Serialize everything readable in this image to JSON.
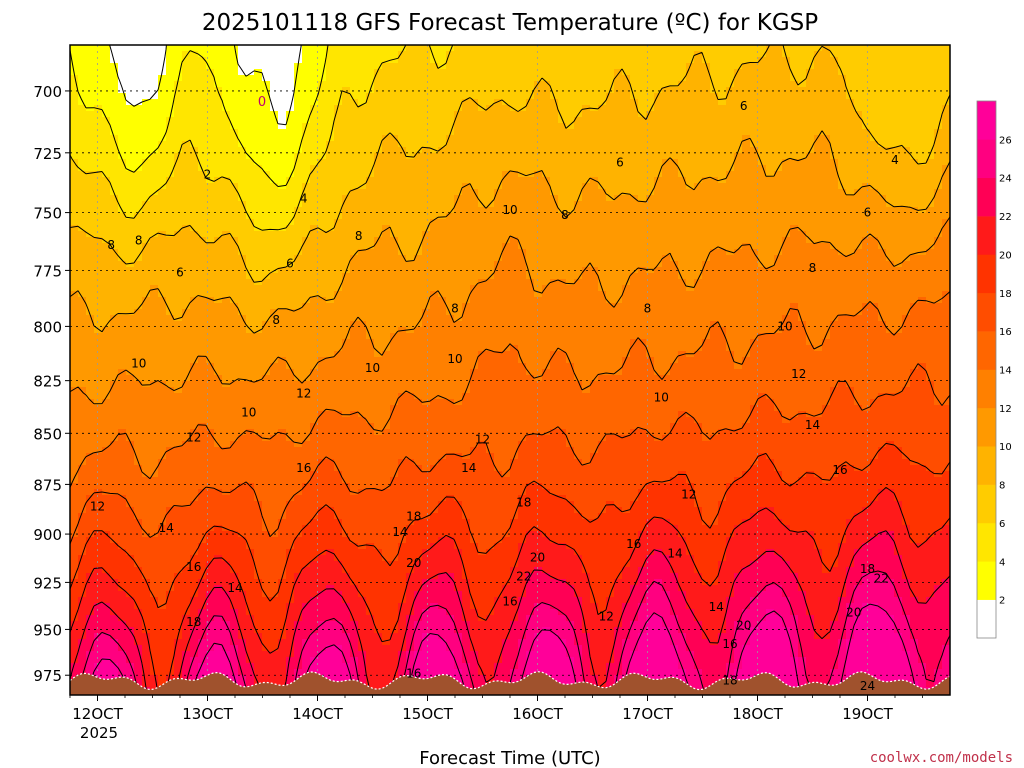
{
  "chart_data": {
    "type": "heatmap",
    "title": "2025101118 GFS Forecast Temperature (ºC) for KGSP",
    "xlabel": "Forecast Time (UTC)",
    "ylabel": "",
    "x_ticks": [
      "12OCT",
      "13OCT",
      "14OCT",
      "15OCT",
      "16OCT",
      "17OCT",
      "18OCT",
      "19OCT"
    ],
    "x_year": "2025",
    "y_ticks": [
      700,
      725,
      750,
      775,
      800,
      825,
      850,
      875,
      900,
      925,
      950,
      975
    ],
    "xlim": [
      "2025-10-11T18:00Z",
      "2025-10-19T18:00Z"
    ],
    "ylim": [
      986,
      682
    ],
    "y_axis": "pressure (hPa), decreasing upward",
    "colorbar": {
      "levels": [
        2,
        4,
        6,
        8,
        10,
        12,
        14,
        16,
        18,
        20,
        22,
        24,
        26
      ],
      "colors": [
        "#ffffff",
        "#ffff00",
        "#ffe600",
        "#ffcc00",
        "#ffb300",
        "#ff9900",
        "#ff8000",
        "#ff6600",
        "#ff4d00",
        "#ff3300",
        "#ff1a1a",
        "#ff0055",
        "#ff0080",
        "#ff0099"
      ]
    },
    "contour_interval": 2,
    "contour_labels": [
      {
        "value": "2",
        "time": "2025-10-13T00:00Z",
        "p": 734
      },
      {
        "value": "4",
        "time": "2025-10-13T21:00Z",
        "p": 744
      },
      {
        "value": "4",
        "time": "2025-10-19T06:00Z",
        "p": 728
      },
      {
        "value": "6",
        "time": "2025-10-12T18:00Z",
        "p": 776
      },
      {
        "value": "6",
        "time": "2025-10-13T18:00Z",
        "p": 772
      },
      {
        "value": "6",
        "time": "2025-10-16T18:00Z",
        "p": 729
      },
      {
        "value": "6",
        "time": "2025-10-17T21:00Z",
        "p": 706
      },
      {
        "value": "6",
        "time": "2025-10-19T00:00Z",
        "p": 750
      },
      {
        "value": "8",
        "time": "2025-10-12T03:00Z",
        "p": 764
      },
      {
        "value": "8",
        "time": "2025-10-12T09:00Z",
        "p": 762
      },
      {
        "value": "8",
        "time": "2025-10-13T15:00Z",
        "p": 797
      },
      {
        "value": "8",
        "time": "2025-10-14T09:00Z",
        "p": 760
      },
      {
        "value": "8",
        "time": "2025-10-15T06:00Z",
        "p": 792
      },
      {
        "value": "8",
        "time": "2025-10-16T06:00Z",
        "p": 751
      },
      {
        "value": "8",
        "time": "2025-10-17T00:00Z",
        "p": 792
      },
      {
        "value": "8",
        "time": "2025-10-18T12:00Z",
        "p": 774
      },
      {
        "value": "10",
        "time": "2025-10-12T09:00Z",
        "p": 817
      },
      {
        "value": "10",
        "time": "2025-10-13T09:00Z",
        "p": 840
      },
      {
        "value": "10",
        "time": "2025-10-14T12:00Z",
        "p": 819
      },
      {
        "value": "10",
        "time": "2025-10-15T06:00Z",
        "p": 815
      },
      {
        "value": "10",
        "time": "2025-10-15T18:00Z",
        "p": 749
      },
      {
        "value": "10",
        "time": "2025-10-17T03:00Z",
        "p": 833
      },
      {
        "value": "10",
        "time": "2025-10-18T06:00Z",
        "p": 800
      },
      {
        "value": "12",
        "time": "2025-10-12T00:00Z",
        "p": 886
      },
      {
        "value": "12",
        "time": "2025-10-12T21:00Z",
        "p": 852
      },
      {
        "value": "12",
        "time": "2025-10-13T21:00Z",
        "p": 831
      },
      {
        "value": "12",
        "time": "2025-10-15T12:00Z",
        "p": 853
      },
      {
        "value": "12",
        "time": "2025-10-16T15:00Z",
        "p": 943
      },
      {
        "value": "12",
        "time": "2025-10-17T09:00Z",
        "p": 880
      },
      {
        "value": "12",
        "time": "2025-10-18T09:00Z",
        "p": 822
      },
      {
        "value": "14",
        "time": "2025-10-12T15:00Z",
        "p": 897
      },
      {
        "value": "14",
        "time": "2025-10-13T06:00Z",
        "p": 928
      },
      {
        "value": "14",
        "time": "2025-10-14T18:00Z",
        "p": 899
      },
      {
        "value": "14",
        "time": "2025-10-15T09:00Z",
        "p": 867
      },
      {
        "value": "14",
        "time": "2025-10-17T06:00Z",
        "p": 910
      },
      {
        "value": "14",
        "time": "2025-10-17T15:00Z",
        "p": 938
      },
      {
        "value": "14",
        "time": "2025-10-18T12:00Z",
        "p": 846
      },
      {
        "value": "16",
        "time": "2025-10-12T21:00Z",
        "p": 917
      },
      {
        "value": "16",
        "time": "2025-10-13T21:00Z",
        "p": 867
      },
      {
        "value": "16",
        "time": "2025-10-14T21:00Z",
        "p": 974
      },
      {
        "value": "16",
        "time": "2025-10-15T18:00Z",
        "p": 935
      },
      {
        "value": "16",
        "time": "2025-10-16T21:00Z",
        "p": 905
      },
      {
        "value": "16",
        "time": "2025-10-17T18:00Z",
        "p": 958
      },
      {
        "value": "16",
        "time": "2025-10-18T18:00Z",
        "p": 868
      },
      {
        "value": "18",
        "time": "2025-10-12T21:00Z",
        "p": 946
      },
      {
        "value": "18",
        "time": "2025-10-14T21:00Z",
        "p": 891
      },
      {
        "value": "18",
        "time": "2025-10-15T21:00Z",
        "p": 884
      },
      {
        "value": "18",
        "time": "2025-10-17T18:00Z",
        "p": 978
      },
      {
        "value": "18",
        "time": "2025-10-19T00:00Z",
        "p": 918
      },
      {
        "value": "20",
        "time": "2025-10-14T21:00Z",
        "p": 915
      },
      {
        "value": "20",
        "time": "2025-10-16T00:00Z",
        "p": 912
      },
      {
        "value": "20",
        "time": "2025-10-17T21:00Z",
        "p": 948
      },
      {
        "value": "20",
        "time": "2025-10-18T21:00Z",
        "p": 941
      },
      {
        "value": "22",
        "time": "2025-10-15T21:00Z",
        "p": 922
      },
      {
        "value": "22",
        "time": "2025-10-19T03:00Z",
        "p": 923
      },
      {
        "value": "24",
        "time": "2025-10-19T00:00Z",
        "p": 981
      }
    ],
    "annotations": [
      "0"
    ]
  },
  "credit": "coolwx.com/models"
}
